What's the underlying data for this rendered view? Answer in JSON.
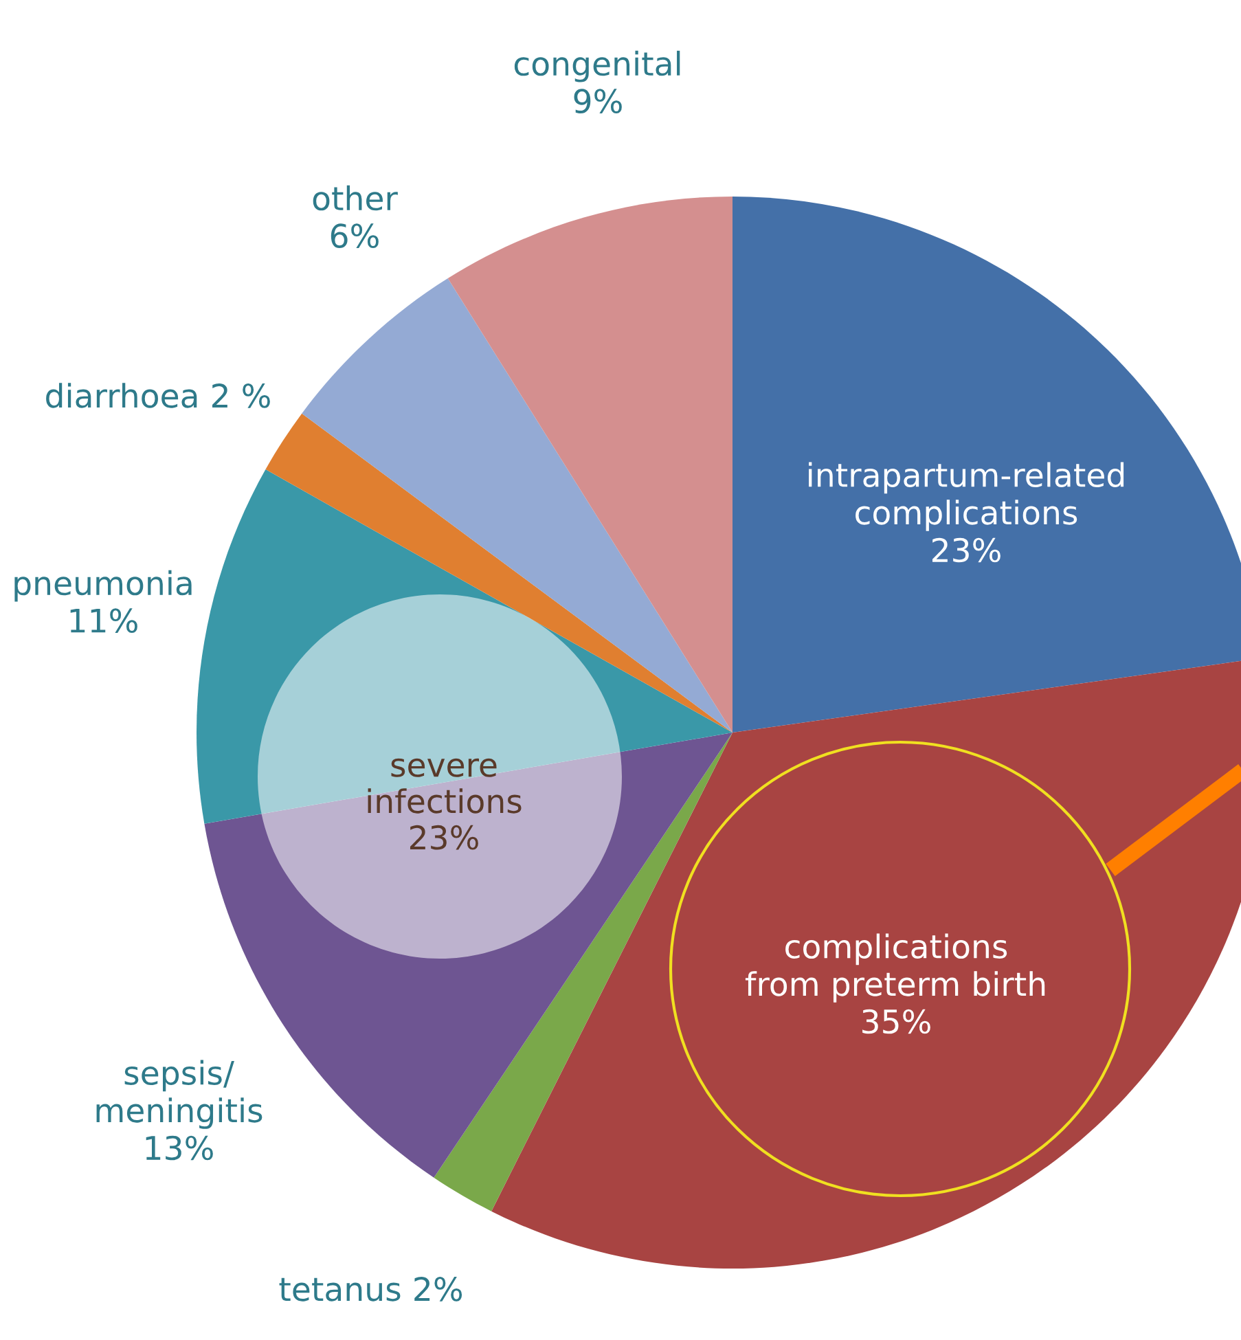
{
  "chart_data": {
    "type": "pie",
    "categories": [
      "intrapartum-related\ncomplications",
      "complications\nfrom preterm birth",
      "tetanus",
      "sepsis/\nmeningitis",
      "pneumonia",
      "diarrhoea",
      "other",
      "congenital"
    ],
    "values": [
      23,
      35,
      2,
      13,
      11,
      2,
      6,
      9
    ],
    "value_labels": [
      "23%",
      "35%",
      "2%",
      "13%",
      "11%",
      "2 %",
      "6%",
      "9%"
    ],
    "colors": [
      "#4470a8",
      "#a84442",
      "#7aa84a",
      "#6e5592",
      "#3a98a8",
      "#e07f30",
      "#94aad4",
      "#d48f8f"
    ],
    "annotations": [
      "severe\ninfections\n23%"
    ]
  }
}
